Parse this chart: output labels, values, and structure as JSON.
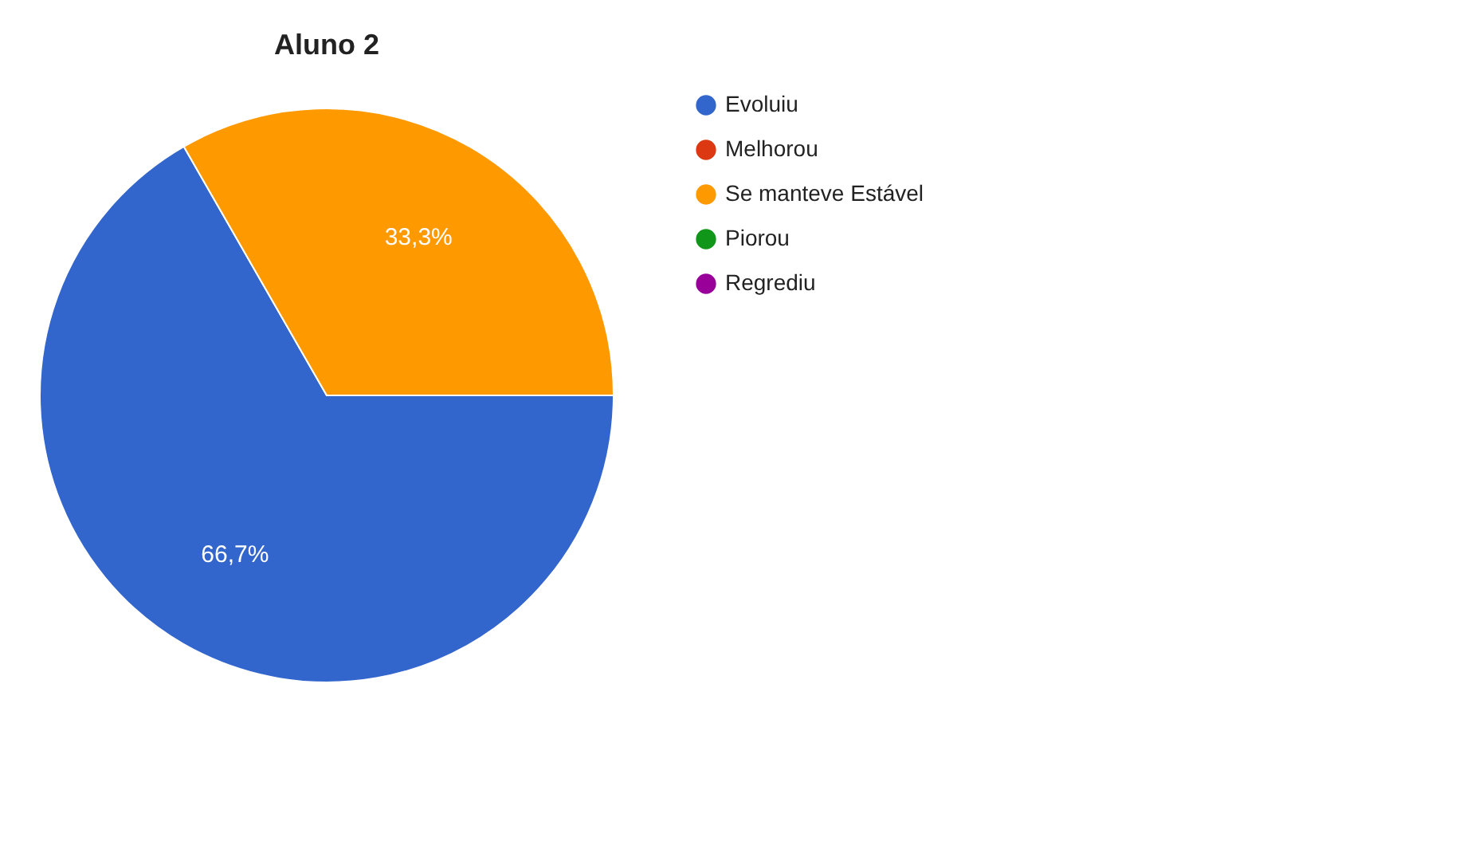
{
  "chart_data": {
    "type": "pie",
    "title": "Aluno  2",
    "categories": [
      "Evoluiu",
      "Melhorou",
      "Se manteve Estável",
      "Piorou",
      "Regrediu"
    ],
    "values": [
      66.7,
      0,
      33.3,
      0,
      0
    ],
    "colors": [
      "#3366cc",
      "#dc3912",
      "#ff9900",
      "#109618",
      "#990099"
    ],
    "value_labels": [
      "66,7%",
      null,
      "33,3%",
      null,
      null
    ],
    "legend": "right"
  }
}
